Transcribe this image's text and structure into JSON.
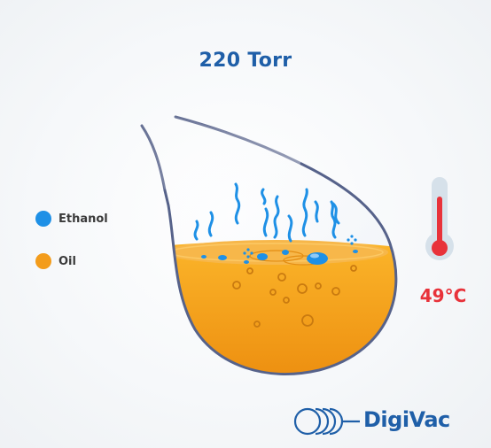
{
  "pressure": "220 Torr",
  "temperature": "49°C",
  "legend": {
    "ethanol": {
      "label": "Ethanol",
      "color": "#1e90e6"
    },
    "oil": {
      "label": "Oil",
      "color": "#f39c1b"
    }
  },
  "brand": {
    "name": "DigiVac",
    "color": "#1f5fa8"
  },
  "colors": {
    "pressure_text": "#1f5fa8",
    "temperature_text": "#e8323a",
    "oil": "#f5a21c",
    "ethanol": "#1e90e6",
    "flask_outline": "#56628a"
  }
}
